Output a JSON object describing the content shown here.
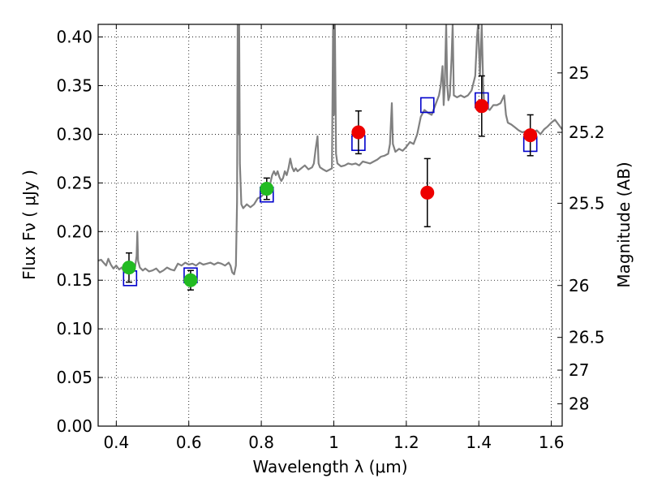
{
  "chart_data": {
    "type": "scatter",
    "xlabel": "Wavelength  λ (μm)",
    "ylabel": "Flux  Fν  ( μJy )",
    "y2label": "Magnitude (AB)",
    "xlim": [
      0.35,
      1.63
    ],
    "ylim": [
      0.0,
      0.413
    ],
    "grid": true,
    "x_ticks": [
      {
        "value": 0.4,
        "label": "0.4"
      },
      {
        "value": 0.6,
        "label": "0.6"
      },
      {
        "value": 0.8,
        "label": "0.8"
      },
      {
        "value": 1.0,
        "label": "1"
      },
      {
        "value": 1.2,
        "label": "1.2"
      },
      {
        "value": 1.4,
        "label": "1.4"
      },
      {
        "value": 1.6,
        "label": "1.6"
      }
    ],
    "y_ticks": [
      {
        "value": 0.0,
        "label": "0.00"
      },
      {
        "value": 0.05,
        "label": "0.05"
      },
      {
        "value": 0.1,
        "label": "0.10"
      },
      {
        "value": 0.15,
        "label": "0.15"
      },
      {
        "value": 0.2,
        "label": "0.20"
      },
      {
        "value": 0.25,
        "label": "0.25"
      },
      {
        "value": 0.3,
        "label": "0.30"
      },
      {
        "value": 0.35,
        "label": "0.35"
      },
      {
        "value": 0.4,
        "label": "0.40"
      }
    ],
    "y2_ticks": [
      {
        "value": 25,
        "label": "25"
      },
      {
        "value": 25.2,
        "label": "25.2"
      },
      {
        "value": 25.5,
        "label": "25.5"
      },
      {
        "value": 26,
        "label": "26"
      },
      {
        "value": 26.5,
        "label": "26.5"
      },
      {
        "value": 27,
        "label": "27"
      },
      {
        "value": 28,
        "label": "28"
      }
    ],
    "series": [
      {
        "kind": "line",
        "color": "#808080",
        "points": [
          [
            0.35,
            0.17
          ],
          [
            0.358,
            0.171
          ],
          [
            0.365,
            0.168
          ],
          [
            0.372,
            0.165
          ],
          [
            0.378,
            0.172
          ],
          [
            0.385,
            0.166
          ],
          [
            0.392,
            0.162
          ],
          [
            0.4,
            0.165
          ],
          [
            0.408,
            0.161
          ],
          [
            0.415,
            0.163
          ],
          [
            0.423,
            0.158
          ],
          [
            0.43,
            0.16
          ],
          [
            0.438,
            0.158
          ],
          [
            0.445,
            0.162
          ],
          [
            0.452,
            0.164
          ],
          [
            0.456,
            0.175
          ],
          [
            0.458,
            0.2
          ],
          [
            0.46,
            0.17
          ],
          [
            0.465,
            0.163
          ],
          [
            0.473,
            0.16
          ],
          [
            0.48,
            0.162
          ],
          [
            0.49,
            0.159
          ],
          [
            0.5,
            0.16
          ],
          [
            0.51,
            0.162
          ],
          [
            0.52,
            0.158
          ],
          [
            0.53,
            0.16
          ],
          [
            0.54,
            0.163
          ],
          [
            0.55,
            0.161
          ],
          [
            0.56,
            0.16
          ],
          [
            0.57,
            0.167
          ],
          [
            0.58,
            0.165
          ],
          [
            0.59,
            0.168
          ],
          [
            0.6,
            0.166
          ],
          [
            0.61,
            0.167
          ],
          [
            0.62,
            0.165
          ],
          [
            0.63,
            0.168
          ],
          [
            0.64,
            0.166
          ],
          [
            0.65,
            0.167
          ],
          [
            0.66,
            0.168
          ],
          [
            0.67,
            0.166
          ],
          [
            0.68,
            0.168
          ],
          [
            0.69,
            0.167
          ],
          [
            0.7,
            0.165
          ],
          [
            0.71,
            0.168
          ],
          [
            0.715,
            0.165
          ],
          [
            0.72,
            0.158
          ],
          [
            0.725,
            0.156
          ],
          [
            0.73,
            0.165
          ],
          [
            0.733,
            0.23
          ],
          [
            0.735,
            0.413
          ],
          [
            0.737,
            0.3
          ],
          [
            0.739,
            0.413
          ],
          [
            0.741,
            0.27
          ],
          [
            0.745,
            0.228
          ],
          [
            0.75,
            0.224
          ],
          [
            0.76,
            0.228
          ],
          [
            0.77,
            0.225
          ],
          [
            0.78,
            0.228
          ],
          [
            0.79,
            0.234
          ],
          [
            0.8,
            0.236
          ],
          [
            0.81,
            0.24
          ],
          [
            0.818,
            0.245
          ],
          [
            0.825,
            0.25
          ],
          [
            0.83,
            0.258
          ],
          [
            0.835,
            0.262
          ],
          [
            0.84,
            0.258
          ],
          [
            0.845,
            0.262
          ],
          [
            0.85,
            0.256
          ],
          [
            0.855,
            0.252
          ],
          [
            0.86,
            0.255
          ],
          [
            0.865,
            0.262
          ],
          [
            0.87,
            0.258
          ],
          [
            0.875,
            0.265
          ],
          [
            0.88,
            0.275
          ],
          [
            0.885,
            0.266
          ],
          [
            0.89,
            0.262
          ],
          [
            0.895,
            0.265
          ],
          [
            0.9,
            0.262
          ],
          [
            0.91,
            0.265
          ],
          [
            0.92,
            0.268
          ],
          [
            0.93,
            0.264
          ],
          [
            0.94,
            0.266
          ],
          [
            0.945,
            0.27
          ],
          [
            0.95,
            0.285
          ],
          [
            0.955,
            0.298
          ],
          [
            0.958,
            0.27
          ],
          [
            0.962,
            0.266
          ],
          [
            0.97,
            0.264
          ],
          [
            0.98,
            0.262
          ],
          [
            0.99,
            0.264
          ],
          [
            0.995,
            0.265
          ],
          [
            0.998,
            0.413
          ],
          [
            1.0,
            0.32
          ],
          [
            1.003,
            0.413
          ],
          [
            1.006,
            0.28
          ],
          [
            1.01,
            0.27
          ],
          [
            1.02,
            0.267
          ],
          [
            1.03,
            0.268
          ],
          [
            1.04,
            0.27
          ],
          [
            1.05,
            0.269
          ],
          [
            1.06,
            0.27
          ],
          [
            1.07,
            0.268
          ],
          [
            1.08,
            0.272
          ],
          [
            1.09,
            0.271
          ],
          [
            1.1,
            0.27
          ],
          [
            1.11,
            0.272
          ],
          [
            1.12,
            0.274
          ],
          [
            1.13,
            0.277
          ],
          [
            1.14,
            0.278
          ],
          [
            1.15,
            0.28
          ],
          [
            1.155,
            0.29
          ],
          [
            1.16,
            0.332
          ],
          [
            1.163,
            0.29
          ],
          [
            1.17,
            0.282
          ],
          [
            1.18,
            0.285
          ],
          [
            1.19,
            0.283
          ],
          [
            1.2,
            0.287
          ],
          [
            1.21,
            0.292
          ],
          [
            1.22,
            0.29
          ],
          [
            1.23,
            0.3
          ],
          [
            1.24,
            0.318
          ],
          [
            1.25,
            0.325
          ],
          [
            1.26,
            0.322
          ],
          [
            1.27,
            0.32
          ],
          [
            1.28,
            0.33
          ],
          [
            1.29,
            0.34
          ],
          [
            1.295,
            0.35
          ],
          [
            1.3,
            0.37
          ],
          [
            1.303,
            0.33
          ],
          [
            1.306,
            0.35
          ],
          [
            1.31,
            0.413
          ],
          [
            1.313,
            0.35
          ],
          [
            1.316,
            0.335
          ],
          [
            1.32,
            0.34
          ],
          [
            1.325,
            0.38
          ],
          [
            1.328,
            0.413
          ],
          [
            1.331,
            0.34
          ],
          [
            1.34,
            0.338
          ],
          [
            1.35,
            0.34
          ],
          [
            1.36,
            0.338
          ],
          [
            1.37,
            0.34
          ],
          [
            1.38,
            0.345
          ],
          [
            1.39,
            0.36
          ],
          [
            1.395,
            0.4
          ],
          [
            1.398,
            0.413
          ],
          [
            1.403,
            0.36
          ],
          [
            1.408,
            0.413
          ],
          [
            1.412,
            0.35
          ],
          [
            1.415,
            0.33
          ],
          [
            1.42,
            0.328
          ],
          [
            1.43,
            0.325
          ],
          [
            1.44,
            0.33
          ],
          [
            1.45,
            0.33
          ],
          [
            1.46,
            0.332
          ],
          [
            1.47,
            0.34
          ],
          [
            1.475,
            0.32
          ],
          [
            1.48,
            0.312
          ],
          [
            1.49,
            0.31
          ],
          [
            1.5,
            0.307
          ],
          [
            1.51,
            0.304
          ],
          [
            1.52,
            0.302
          ],
          [
            1.53,
            0.303
          ],
          [
            1.54,
            0.3
          ],
          [
            1.55,
            0.302
          ],
          [
            1.56,
            0.304
          ],
          [
            1.57,
            0.3
          ],
          [
            1.58,
            0.305
          ],
          [
            1.59,
            0.308
          ],
          [
            1.6,
            0.312
          ],
          [
            1.61,
            0.315
          ],
          [
            1.62,
            0.31
          ],
          [
            1.63,
            0.305
          ]
        ]
      },
      {
        "kind": "open-squares",
        "color": "#0000cc",
        "points": [
          {
            "x": 0.438,
            "y": 0.152
          },
          {
            "x": 0.605,
            "y": 0.155
          },
          {
            "x": 0.815,
            "y": 0.238
          },
          {
            "x": 1.068,
            "y": 0.291
          },
          {
            "x": 1.258,
            "y": 0.33
          },
          {
            "x": 1.408,
            "y": 0.335
          },
          {
            "x": 1.542,
            "y": 0.29
          }
        ]
      },
      {
        "kind": "filled-circles",
        "color": "#22bb22",
        "points": [
          {
            "x": 0.435,
            "y": 0.163,
            "err": 0.015
          },
          {
            "x": 0.605,
            "y": 0.15,
            "err": 0.01
          },
          {
            "x": 0.815,
            "y": 0.244,
            "err": 0.011
          }
        ]
      },
      {
        "kind": "filled-circles",
        "color": "#ee0000",
        "points": [
          {
            "x": 1.068,
            "y": 0.302,
            "err": 0.022
          },
          {
            "x": 1.258,
            "y": 0.24,
            "err": 0.035
          },
          {
            "x": 1.408,
            "y": 0.329,
            "err": 0.031
          },
          {
            "x": 1.542,
            "y": 0.299,
            "err": 0.021
          }
        ]
      }
    ]
  }
}
